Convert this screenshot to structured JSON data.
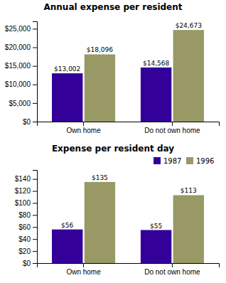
{
  "chart_data": [
    {
      "type": "bar",
      "title": "Annual expense per resident",
      "categories": [
        "Own home",
        "Do not own home"
      ],
      "series": [
        {
          "name": "1987",
          "color": "#330099",
          "values": [
            13002,
            14568
          ],
          "value_labels": [
            "$13,002",
            "$14,568"
          ]
        },
        {
          "name": "1996",
          "color": "#999966",
          "values": [
            18096,
            24673
          ],
          "value_labels": [
            "$18,096",
            "$24,673"
          ]
        }
      ],
      "ylim": [
        0,
        27000
      ],
      "yticks": [
        {
          "value": 0,
          "label": "$0"
        },
        {
          "value": 5000,
          "label": "$5,000"
        },
        {
          "value": 10000,
          "label": "$10,000"
        },
        {
          "value": 15000,
          "label": "$15,000"
        },
        {
          "value": 20000,
          "label": "$20,000"
        },
        {
          "value": 25000,
          "label": "$25,000"
        }
      ],
      "data_labels": true
    },
    {
      "type": "bar",
      "title": "Expense per resident day",
      "categories": [
        "Own home",
        "Do not own home"
      ],
      "series": [
        {
          "name": "1987",
          "color": "#330099",
          "values": [
            56,
            55
          ],
          "value_labels": [
            "$56",
            "$55"
          ]
        },
        {
          "name": "1996",
          "color": "#999966",
          "values": [
            135,
            113
          ],
          "value_labels": [
            "$135",
            "$113"
          ]
        }
      ],
      "ylim": [
        0,
        155
      ],
      "yticks": [
        {
          "value": 0,
          "label": "$0"
        },
        {
          "value": 20,
          "label": "$20"
        },
        {
          "value": 40,
          "label": "$40"
        },
        {
          "value": 60,
          "label": "$60"
        },
        {
          "value": 80,
          "label": "$80"
        },
        {
          "value": 100,
          "label": "$100"
        },
        {
          "value": 120,
          "label": "$120"
        },
        {
          "value": 140,
          "label": "$140"
        }
      ],
      "data_labels": true,
      "legend": "upper right"
    }
  ]
}
